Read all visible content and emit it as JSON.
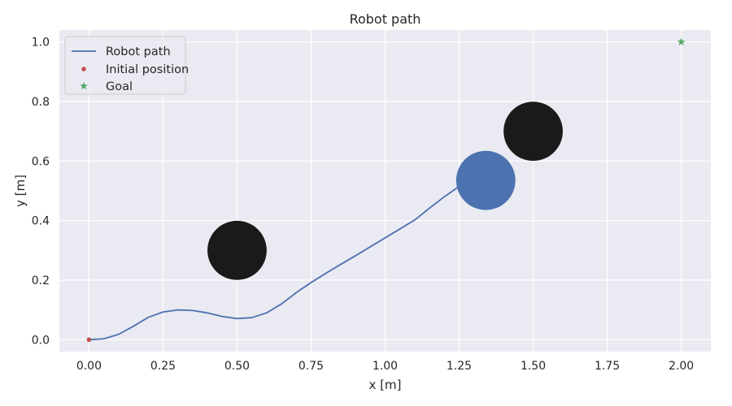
{
  "chart_data": {
    "type": "line",
    "title": "Robot path",
    "xlabel": "x [m]",
    "ylabel": "y [m]",
    "xlim": [
      -0.1,
      2.1
    ],
    "ylim": [
      -0.04,
      1.04
    ],
    "x_ticks": [
      0.0,
      0.25,
      0.5,
      0.75,
      1.0,
      1.25,
      1.5,
      1.75,
      2.0
    ],
    "x_tick_labels": [
      "0.00",
      "0.25",
      "0.50",
      "0.75",
      "1.00",
      "1.25",
      "1.50",
      "1.75",
      "2.00"
    ],
    "y_ticks": [
      0.0,
      0.2,
      0.4,
      0.6,
      0.8,
      1.0
    ],
    "y_tick_labels": [
      "0.0",
      "0.2",
      "0.4",
      "0.6",
      "0.8",
      "1.0"
    ],
    "grid": true,
    "legend_position": "top-left",
    "background_color": "#eaeaf2",
    "series": [
      {
        "name": "Robot path",
        "kind": "line",
        "color": "#4c72b0",
        "points": [
          [
            0.0,
            0.0
          ],
          [
            0.05,
            0.003
          ],
          [
            0.1,
            0.018
          ],
          [
            0.15,
            0.045
          ],
          [
            0.2,
            0.075
          ],
          [
            0.25,
            0.093
          ],
          [
            0.3,
            0.1
          ],
          [
            0.35,
            0.098
          ],
          [
            0.4,
            0.09
          ],
          [
            0.45,
            0.078
          ],
          [
            0.5,
            0.071
          ],
          [
            0.55,
            0.074
          ],
          [
            0.6,
            0.09
          ],
          [
            0.65,
            0.12
          ],
          [
            0.7,
            0.158
          ],
          [
            0.75,
            0.192
          ],
          [
            0.8,
            0.223
          ],
          [
            0.85,
            0.253
          ],
          [
            0.9,
            0.282
          ],
          [
            0.95,
            0.312
          ],
          [
            1.0,
            0.342
          ],
          [
            1.05,
            0.372
          ],
          [
            1.1,
            0.402
          ],
          [
            1.15,
            0.442
          ],
          [
            1.2,
            0.48
          ],
          [
            1.25,
            0.515
          ],
          [
            1.3,
            0.532
          ],
          [
            1.34,
            0.535
          ]
        ]
      },
      {
        "name": "Initial position",
        "kind": "point",
        "marker": "circle",
        "color": "#c44e52",
        "points": [
          [
            0.0,
            0.0
          ]
        ]
      },
      {
        "name": "Goal",
        "kind": "point",
        "marker": "star",
        "color": "#55a868",
        "points": [
          [
            2.0,
            1.0
          ]
        ]
      }
    ],
    "circles": [
      {
        "x": 0.5,
        "y": 0.3,
        "r": 0.1,
        "color": "#1a1a1a"
      },
      {
        "x": 1.5,
        "y": 0.7,
        "r": 0.1,
        "color": "#1a1a1a"
      },
      {
        "x": 1.34,
        "y": 0.535,
        "r": 0.1,
        "color": "#4c72b0"
      }
    ]
  }
}
